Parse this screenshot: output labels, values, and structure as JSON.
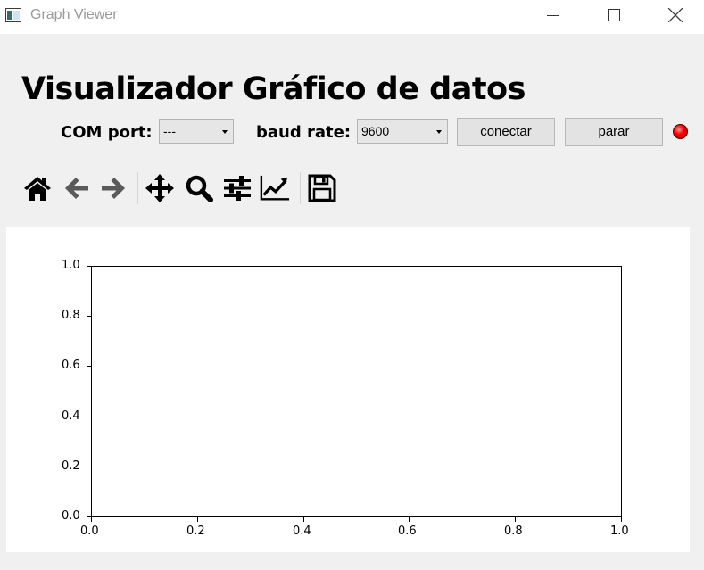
{
  "window": {
    "title": "Graph Viewer"
  },
  "header": {
    "title": "Visualizador Gráfico de datos"
  },
  "controls": {
    "com_label": "COM port:",
    "com_value": "---",
    "baud_label": "baud rate:",
    "baud_value": "9600",
    "connect_label": "conectar",
    "stop_label": "parar",
    "status_color": "#ff0000"
  },
  "toolbar": {
    "icons": [
      "home-icon",
      "back-arrow-icon",
      "forward-arrow-icon",
      "pan-icon",
      "zoom-icon",
      "subplots-config-icon",
      "edit-axis-icon",
      "save-icon"
    ]
  },
  "chart_data": {
    "type": "line",
    "series": [],
    "xlim": [
      0.0,
      1.0
    ],
    "ylim": [
      0.0,
      1.0
    ],
    "xticks": [
      "0.0",
      "0.2",
      "0.4",
      "0.6",
      "0.8",
      "1.0"
    ],
    "yticks": [
      "0.0",
      "0.2",
      "0.4",
      "0.6",
      "0.8",
      "1.0"
    ],
    "grid": false
  }
}
